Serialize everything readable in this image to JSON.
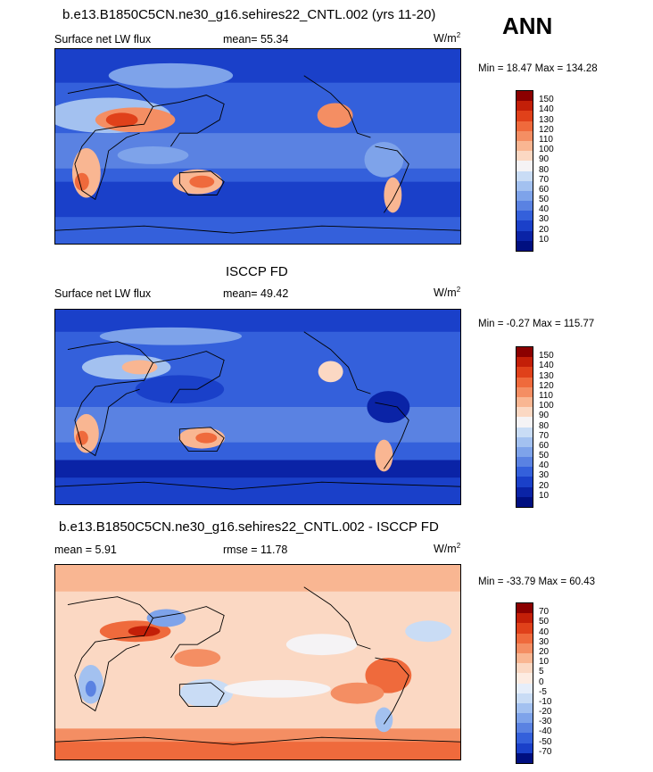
{
  "season": "ANN",
  "panels": [
    {
      "title": "b.e13.B1850C5CN.ne30_g16.sehires22_CNTL.002 (yrs 11-20)",
      "variable": "Surface net LW flux",
      "mean_text": "mean=  55.34",
      "rmse_text": "",
      "units": "W/m",
      "units_exp": "2",
      "minmax": "Min =  18.47 Max = 134.28",
      "levels": [
        "150",
        "140",
        "130",
        "120",
        "110",
        "100",
        "90",
        "80",
        "70",
        "60",
        "50",
        "40",
        "30",
        "20",
        "10"
      ],
      "colors": [
        "#8b0000",
        "#c31f08",
        "#e0411a",
        "#ef6a3c",
        "#f48e63",
        "#f9b692",
        "#fbd8c3",
        "#f5f3f5",
        "#c9dcf5",
        "#a3c1f0",
        "#7ea3ea",
        "#5a82e2",
        "#3460db",
        "#1a40c9",
        "#0a23a6",
        "#000f80"
      ]
    },
    {
      "title": "ISCCP FD",
      "variable": "Surface net LW flux",
      "mean_text": "mean=  49.42",
      "rmse_text": "",
      "units": "W/m",
      "units_exp": "2",
      "minmax": "Min =  -0.27 Max = 115.77",
      "levels": [
        "150",
        "140",
        "130",
        "120",
        "110",
        "100",
        "90",
        "80",
        "70",
        "60",
        "50",
        "40",
        "30",
        "20",
        "10"
      ],
      "colors": [
        "#8b0000",
        "#c31f08",
        "#e0411a",
        "#ef6a3c",
        "#f48e63",
        "#f9b692",
        "#fbd8c3",
        "#f5f3f5",
        "#c9dcf5",
        "#a3c1f0",
        "#7ea3ea",
        "#5a82e2",
        "#3460db",
        "#1a40c9",
        "#0a23a6",
        "#000f80"
      ]
    },
    {
      "title": "b.e13.B1850C5CN.ne30_g16.sehires22_CNTL.002 - ISCCP FD",
      "variable": "",
      "mean_text": "mean =   5.91",
      "rmse_text": "rmse =  11.78",
      "units": "W/m",
      "units_exp": "2",
      "minmax": "Min = -33.79 Max =  60.43",
      "levels": [
        "70",
        "50",
        "40",
        "30",
        "20",
        "10",
        "5",
        "0",
        "-5",
        "-10",
        "-20",
        "-30",
        "-40",
        "-50",
        "-70"
      ],
      "colors": [
        "#8b0000",
        "#c31f08",
        "#e0411a",
        "#ef6a3c",
        "#f48e63",
        "#f9b692",
        "#fbd8c3",
        "#fdece2",
        "#e6eefa",
        "#c9dcf5",
        "#a3c1f0",
        "#7ea3ea",
        "#5a82e2",
        "#3460db",
        "#1a40c9",
        "#000f80"
      ]
    }
  ],
  "chart_data": [
    {
      "type": "heatmap",
      "title": "b.e13.B1850C5CN.ne30_g16.sehires22_CNTL.002 (yrs 11-20)",
      "variable": "Surface net LW flux",
      "units": "W/m2",
      "mean": 55.34,
      "min": 18.47,
      "max": 134.28,
      "contour_levels": [
        10,
        20,
        30,
        40,
        50,
        60,
        70,
        80,
        90,
        100,
        110,
        120,
        130,
        140,
        150
      ]
    },
    {
      "type": "heatmap",
      "title": "ISCCP FD",
      "variable": "Surface net LW flux",
      "units": "W/m2",
      "mean": 49.42,
      "min": -0.27,
      "max": 115.77,
      "contour_levels": [
        10,
        20,
        30,
        40,
        50,
        60,
        70,
        80,
        90,
        100,
        110,
        120,
        130,
        140,
        150
      ]
    },
    {
      "type": "heatmap",
      "title": "b.e13.B1850C5CN.ne30_g16.sehires22_CNTL.002 - ISCCP FD",
      "units": "W/m2",
      "mean": 5.91,
      "rmse": 11.78,
      "min": -33.79,
      "max": 60.43,
      "contour_levels": [
        -70,
        -50,
        -40,
        -30,
        -20,
        -10,
        -5,
        0,
        5,
        10,
        20,
        30,
        40,
        50,
        70
      ]
    }
  ]
}
